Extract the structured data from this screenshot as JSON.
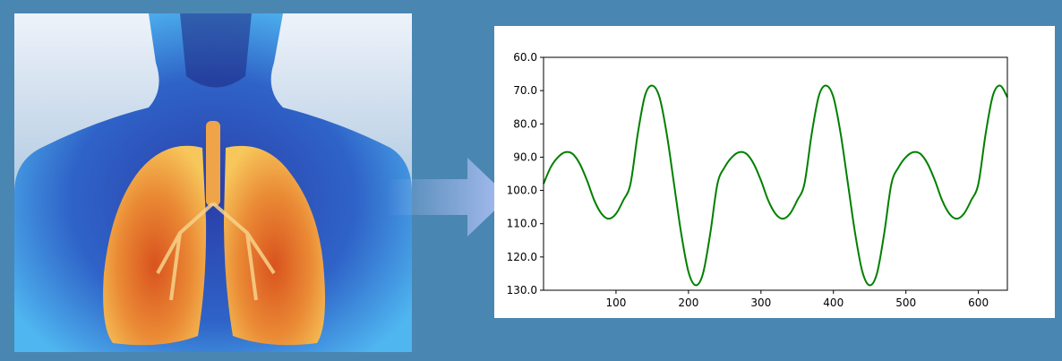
{
  "illustration": {
    "subject": "human torso with highlighted lungs",
    "colors": {
      "background_top": "#eef3fa",
      "background_bottom": "#7da6cc",
      "body": "#2f63c8",
      "body_glow": "#4fb6f0",
      "lung_core": "#d9531e",
      "lung_edge": "#f7c75b",
      "airway": "#f0a44a"
    }
  },
  "arrow": {
    "icon": "right-arrow-icon",
    "color": "#a9bdf0"
  },
  "chart_data": {
    "type": "line",
    "title": "",
    "xlabel": "",
    "ylabel": "",
    "xlim": [
      0,
      640
    ],
    "ylim": [
      60,
      130
    ],
    "y_inverted": true,
    "grid": false,
    "line_color": "#008000",
    "x_ticks": [
      100,
      200,
      300,
      400,
      500,
      600
    ],
    "x_tick_labels": [
      "100",
      "200",
      "300",
      "400",
      "500",
      "600"
    ],
    "y_ticks": [
      60,
      70,
      80,
      90,
      100,
      110,
      120,
      130
    ],
    "y_tick_labels": [
      "60.0",
      "70.0",
      "80.0",
      "90.0",
      "100.0",
      "110.0",
      "120.0",
      "130.0"
    ],
    "series": [
      {
        "x": [
          0,
          10,
          20,
          30,
          40,
          50,
          60,
          70,
          80,
          90,
          100,
          110,
          120,
          130,
          140,
          150,
          160,
          170,
          180,
          190,
          200,
          210,
          220,
          230,
          240,
          250,
          260,
          270,
          280,
          290,
          300,
          310,
          320,
          330,
          340,
          350,
          360,
          370,
          380,
          390,
          400,
          410,
          420,
          430,
          440,
          450,
          460,
          470,
          480,
          490,
          500,
          510,
          520,
          530,
          540,
          550,
          560,
          570,
          580,
          590,
          600,
          610,
          620,
          630,
          640
        ],
        "y": [
          98,
          93,
          90,
          88.5,
          89,
          92,
          97,
          103,
          107,
          108.5,
          107,
          103,
          98,
          83,
          71.5,
          68.5,
          72,
          83,
          98,
          113,
          124.5,
          128.5,
          125,
          113,
          98,
          93,
          90,
          88.5,
          89,
          92,
          97,
          103,
          107,
          108.5,
          107,
          103,
          98,
          83,
          71.5,
          68.5,
          72,
          83,
          98,
          113,
          124.5,
          128.5,
          125,
          113,
          98,
          93,
          90,
          88.5,
          89,
          92,
          97,
          103,
          107,
          108.5,
          107,
          103,
          98,
          83,
          71.5,
          68.5,
          72
        ]
      }
    ]
  }
}
